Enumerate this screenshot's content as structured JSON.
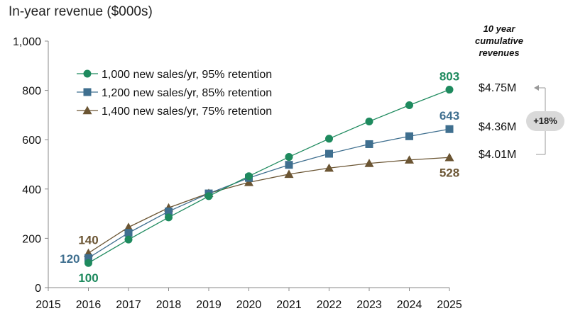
{
  "chart_data": {
    "type": "line",
    "ylabel": "In-year revenue ($000s)",
    "x": [
      2016,
      2017,
      2018,
      2019,
      2020,
      2021,
      2022,
      2023,
      2024,
      2025
    ],
    "x_ticks": [
      "2015",
      "2016",
      "2017",
      "2018",
      "2019",
      "2020",
      "2021",
      "2022",
      "2023",
      "2024",
      "2025"
    ],
    "xlim": [
      2015,
      2025
    ],
    "ylim": [
      0,
      1000
    ],
    "y_ticks": [
      "0",
      "200",
      "400",
      "600",
      "800",
      "1,000"
    ],
    "legend_position": "top-left",
    "series": [
      {
        "name": "1,000 new sales/yr, 95% retention",
        "marker": "circle",
        "color": "#1e8a5e",
        "values": [
          100,
          195,
          285,
          371,
          452,
          530,
          604,
          674,
          740,
          803
        ],
        "start_label": "100",
        "end_label": "803"
      },
      {
        "name": "1,200 new sales/yr, 85% retention",
        "marker": "square",
        "color": "#3f6f8f",
        "values": [
          120,
          222,
          309,
          382,
          445,
          498,
          543,
          582,
          614,
          643
        ],
        "start_label": "120",
        "end_label": "643"
      },
      {
        "name": "1,400 new sales/yr, 75% retention",
        "marker": "triangle",
        "color": "#6b5533",
        "values": [
          140,
          245,
          324,
          383,
          427,
          460,
          485,
          504,
          518,
          528
        ],
        "start_label": "140",
        "end_label": "528"
      }
    ]
  },
  "side_panel": {
    "title_lines": [
      "10 year",
      "cumulative",
      "revenues"
    ],
    "values": [
      "$4.75M",
      "$4.36M",
      "$4.01M"
    ],
    "diff_badge": "+18%"
  }
}
